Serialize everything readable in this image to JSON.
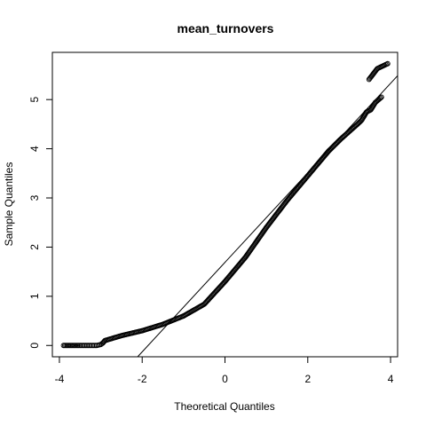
{
  "chart_data": {
    "type": "scatter",
    "title": "mean_turnovers",
    "xlabel": "Theoretical Quantiles",
    "ylabel": "Sample Quantiles",
    "xlim": [
      -4.17,
      4.17
    ],
    "ylim": [
      -0.23,
      5.96
    ],
    "xticks": [
      -4,
      -2,
      0,
      2,
      4
    ],
    "yticks": [
      0,
      1,
      2,
      3,
      4,
      5
    ],
    "grid": false,
    "series": [
      {
        "points": [
          [
            -3.9,
            0.0
          ],
          [
            -3.62,
            0.0
          ],
          [
            -3.5,
            0.0
          ],
          [
            -3.4,
            0.0
          ],
          [
            -3.3,
            0.0
          ],
          [
            -3.2,
            0.0
          ],
          [
            -3.1,
            0.0
          ],
          [
            -3.0,
            0.02
          ],
          [
            -2.95,
            0.05
          ],
          [
            -2.9,
            0.1
          ],
          [
            -2.5,
            0.2
          ],
          [
            -2.0,
            0.3
          ],
          [
            -1.5,
            0.43
          ],
          [
            -1.0,
            0.6
          ],
          [
            -0.5,
            0.84
          ],
          [
            0.0,
            1.3
          ],
          [
            0.5,
            1.8
          ],
          [
            1.0,
            2.4
          ],
          [
            1.5,
            2.95
          ],
          [
            2.0,
            3.45
          ],
          [
            2.5,
            3.95
          ],
          [
            2.8,
            4.2
          ],
          [
            3.0,
            4.35
          ],
          [
            3.2,
            4.5
          ],
          [
            3.3,
            4.58
          ],
          [
            3.42,
            4.75
          ],
          [
            3.52,
            4.79
          ],
          [
            3.63,
            4.94
          ],
          [
            3.78,
            5.05
          ],
          [
            3.48,
            5.41
          ],
          [
            3.68,
            5.63
          ],
          [
            3.93,
            5.73
          ]
        ]
      }
    ],
    "reference_line": {
      "slope": 0.91,
      "intercept": 1.69
    }
  }
}
